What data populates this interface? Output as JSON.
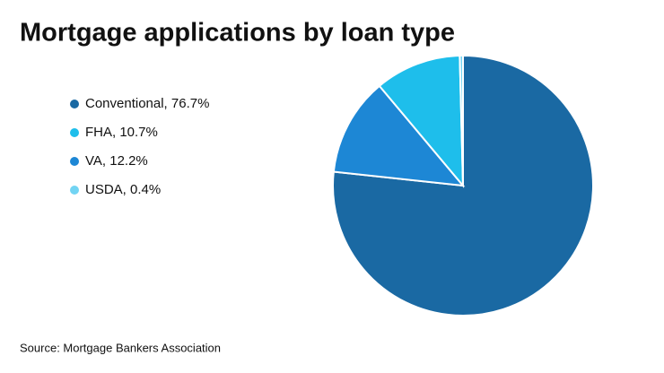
{
  "chart_data": {
    "type": "pie",
    "title": "Mortgage applications by loan type",
    "categories": [
      "Conventional, 76.7%",
      "FHA, 10.7%",
      "VA, 12.2%",
      "USDA, 0.4%"
    ],
    "values": [
      76.7,
      10.7,
      12.2,
      0.4
    ],
    "colors": [
      "#1a69a3",
      "#1ebeeb",
      "#1d87d5",
      "#72d4f3"
    ],
    "source": "Source: Mortgage Bankers Association"
  }
}
